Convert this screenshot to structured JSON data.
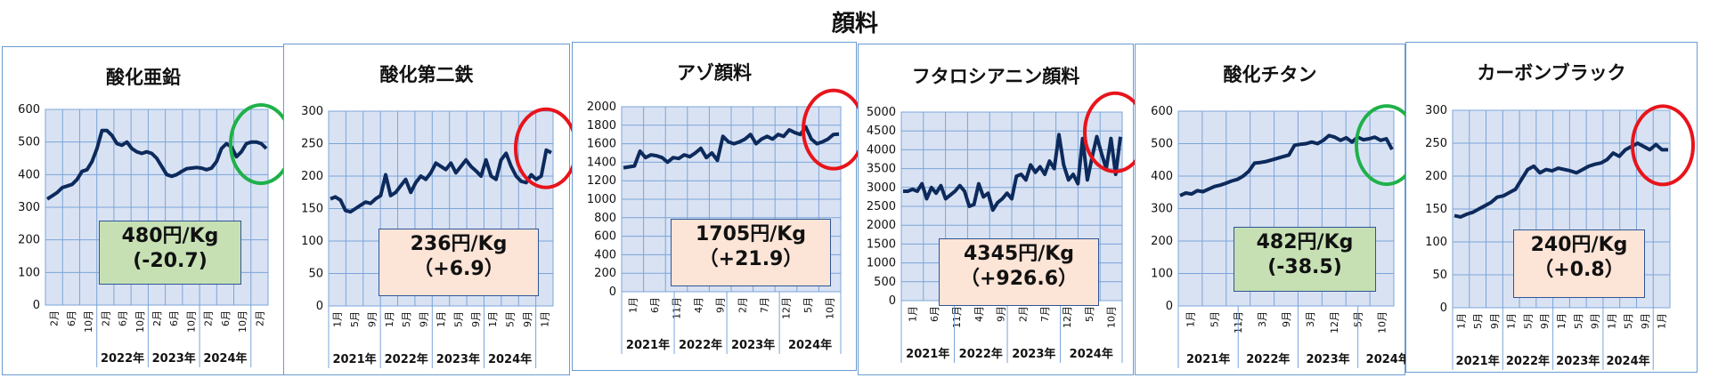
{
  "page": {
    "title": "顔料"
  },
  "colors": {
    "line": "#0d2a5c",
    "plot_bg": "#d9e2f3",
    "grid": "#7aa5d8",
    "ring_green": "#1fb14a",
    "ring_red": "#e8141c"
  },
  "chart_data": [
    {
      "type": "line",
      "title": "酸化亜鉛",
      "ylim": [
        0,
        600
      ],
      "yticks": [
        0,
        100,
        200,
        300,
        400,
        500,
        600
      ],
      "month_labels": [
        "2月",
        "6月",
        "10月",
        "2月",
        "6月",
        "10月",
        "2月",
        "6月",
        "10月",
        "2月",
        "6月",
        "10月",
        "2月"
      ],
      "year_labels": [
        "2022年",
        "2023年",
        "2024年"
      ],
      "year_span": [
        3,
        6,
        9,
        12
      ],
      "values": [
        325,
        335,
        345,
        360,
        365,
        370,
        385,
        410,
        415,
        440,
        480,
        535,
        535,
        520,
        495,
        490,
        500,
        480,
        470,
        465,
        470,
        465,
        450,
        425,
        400,
        395,
        400,
        410,
        418,
        420,
        422,
        420,
        415,
        420,
        440,
        480,
        495,
        485,
        455,
        470,
        495,
        500,
        500,
        495,
        480
      ],
      "price_label": "480円/Kg",
      "change_label": "(-20.7)",
      "box_color": "green",
      "ring_color": "green"
    },
    {
      "type": "line",
      "title": "酸化第二鉄",
      "ylim": [
        0,
        300
      ],
      "yticks": [
        0,
        50,
        100,
        150,
        200,
        250,
        300
      ],
      "month_labels": [
        "1月",
        "5月",
        "9月",
        "1月",
        "5月",
        "9月",
        "1月",
        "5月",
        "9月",
        "1月",
        "5月",
        "9月",
        "1月"
      ],
      "year_labels": [
        "2021年",
        "2022年",
        "2023年",
        "2024年"
      ],
      "year_span": [
        0,
        3,
        6,
        9,
        12
      ],
      "values": [
        165,
        168,
        163,
        147,
        145,
        150,
        155,
        160,
        158,
        165,
        170,
        202,
        170,
        175,
        185,
        195,
        175,
        190,
        200,
        195,
        205,
        220,
        215,
        210,
        220,
        205,
        215,
        225,
        215,
        208,
        200,
        225,
        200,
        195,
        225,
        235,
        215,
        200,
        192,
        190,
        202,
        195,
        200,
        240,
        236
      ],
      "price_label": "236円/Kg",
      "change_label": "（+6.9）",
      "box_color": "peach",
      "ring_color": "red"
    },
    {
      "type": "line",
      "title": "アゾ顔料",
      "ylim": [
        0,
        2000
      ],
      "yticks": [
        0,
        200,
        400,
        600,
        800,
        1000,
        1200,
        1400,
        1600,
        1800,
        2000
      ],
      "month_labels": [
        "1月",
        "6月",
        "11月",
        "4月",
        "9月",
        "2月",
        "7月",
        "12月",
        "5月",
        "10月"
      ],
      "year_labels": [
        "2021年",
        "2022年",
        "2023年",
        "2024年"
      ],
      "year_span": [
        0,
        2.4,
        4.8,
        7.2,
        10
      ],
      "values": [
        1340,
        1350,
        1360,
        1520,
        1450,
        1480,
        1470,
        1450,
        1400,
        1450,
        1440,
        1480,
        1460,
        1500,
        1550,
        1450,
        1500,
        1420,
        1680,
        1620,
        1600,
        1620,
        1650,
        1700,
        1600,
        1650,
        1680,
        1650,
        1700,
        1680,
        1750,
        1720,
        1700,
        1780,
        1650,
        1600,
        1620,
        1650,
        1700,
        1705
      ],
      "price_label": "1705円/Kg",
      "change_label": "（+21.9）",
      "box_color": "peach",
      "ring_color": "red"
    },
    {
      "type": "line",
      "title": "フタロシアニン顔料",
      "ylim": [
        0,
        5000
      ],
      "yticks": [
        0,
        500,
        1000,
        1500,
        2000,
        2500,
        3000,
        3500,
        4000,
        4500,
        5000
      ],
      "month_labels": [
        "1月",
        "6月",
        "11月",
        "4月",
        "9月",
        "2月",
        "7月",
        "12月",
        "5月",
        "10月"
      ],
      "year_labels": [
        "2021年",
        "2022年",
        "2023年",
        "2024年"
      ],
      "year_span": [
        0,
        2.4,
        4.8,
        7.2,
        10
      ],
      "values": [
        2900,
        2900,
        2950,
        2900,
        3100,
        2700,
        3000,
        2850,
        3050,
        2700,
        2800,
        2900,
        3050,
        2900,
        2500,
        2550,
        3100,
        2750,
        2850,
        2400,
        2600,
        2700,
        2850,
        2700,
        3300,
        3350,
        3200,
        3600,
        3400,
        3550,
        3350,
        3700,
        3500,
        4400,
        3600,
        3200,
        3350,
        3100,
        4300,
        3200,
        3800,
        4350,
        3900,
        3500,
        4300,
        3350,
        4345
      ],
      "price_label": "4345円/Kg",
      "change_label": "（+926.6）",
      "box_color": "peach",
      "ring_color": "red"
    },
    {
      "type": "line",
      "title": "酸化チタン",
      "ylim": [
        0,
        600
      ],
      "yticks": [
        0,
        100,
        200,
        300,
        400,
        500,
        600
      ],
      "month_labels": [
        "1月",
        "5月",
        "11月",
        "3月",
        "9月",
        "3月",
        "12月",
        "5月",
        "10月"
      ],
      "year_labels": [
        "2021年",
        "2022年",
        "2023年",
        "2024年"
      ],
      "year_span": [
        0,
        2.5,
        5,
        7.5,
        10
      ],
      "values": [
        340,
        348,
        345,
        355,
        352,
        360,
        368,
        372,
        378,
        385,
        390,
        400,
        415,
        440,
        442,
        445,
        450,
        455,
        460,
        465,
        495,
        498,
        500,
        505,
        500,
        510,
        525,
        520,
        510,
        518,
        505,
        520,
        512,
        515,
        520,
        510,
        515,
        482
      ],
      "price_label": "482円/Kg",
      "change_label": "(-38.5)",
      "box_color": "green",
      "ring_color": "green"
    },
    {
      "type": "line",
      "title": "カーボンブラック",
      "ylim": [
        0,
        300
      ],
      "yticks": [
        0,
        50,
        100,
        150,
        200,
        250,
        300
      ],
      "month_labels": [
        "1月",
        "5月",
        "9月",
        "1月",
        "5月",
        "9月",
        "1月",
        "5月",
        "9月",
        "1月",
        "5月",
        "9月",
        "1月"
      ],
      "year_labels": [
        "2021年",
        "2022年",
        "2023年",
        "2024年"
      ],
      "year_span": [
        0,
        3,
        6,
        9,
        12
      ],
      "values": [
        140,
        138,
        142,
        145,
        150,
        155,
        160,
        168,
        170,
        175,
        180,
        195,
        210,
        215,
        205,
        210,
        208,
        212,
        210,
        208,
        205,
        210,
        215,
        218,
        220,
        225,
        235,
        230,
        240,
        245,
        250,
        245,
        240,
        248,
        240,
        240
      ],
      "price_label": "240円/Kg",
      "change_label": "（+0.8）",
      "box_color": "peach",
      "ring_color": "red"
    }
  ]
}
